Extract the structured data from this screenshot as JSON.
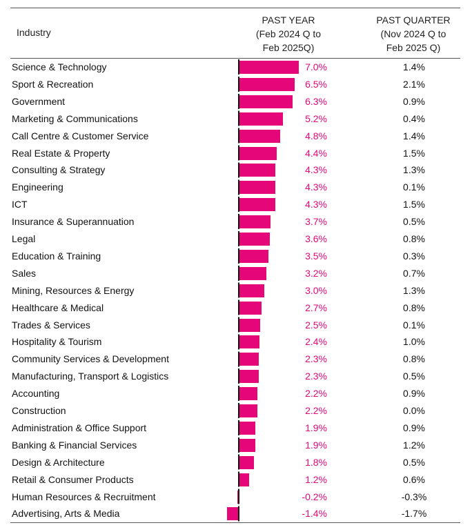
{
  "header": {
    "industry": "Industry",
    "past_year": [
      "PAST YEAR",
      "(Feb 2024 Q to",
      "Feb 2025Q)"
    ],
    "past_quarter": [
      "PAST QUARTER",
      "(Nov 2024 Q to",
      "Feb 2025 Q)"
    ]
  },
  "colors": {
    "bar": "#e5067a",
    "year_text": "#e5067a",
    "quarter_text": "#111111"
  },
  "chart_data": {
    "type": "bar",
    "orientation": "horizontal",
    "title": "",
    "xlabel": "PAST YEAR (Feb 2024 Q to Feb 2025Q)",
    "ylabel": "Industry",
    "xlim": [
      -1.4,
      7.0
    ],
    "grid": false,
    "categories": [
      "Science & Technology",
      "Sport & Recreation",
      "Government",
      "Marketing & Communications",
      "Call Centre & Customer Service",
      "Real Estate & Property",
      "Consulting & Strategy",
      "Engineering",
      "ICT",
      "Insurance & Superannuation",
      "Legal",
      "Education & Training",
      "Sales",
      "Mining, Resources & Energy",
      "Healthcare & Medical",
      "Trades & Services",
      "Hospitality & Tourism",
      "Community Services & Development",
      "Manufacturing, Transport & Logistics",
      "Accounting",
      "Construction",
      "Administration & Office Support",
      "Banking & Financial Services",
      "Design & Architecture",
      "Retail & Consumer Products",
      "Human Resources & Recruitment",
      "Advertising, Arts & Media"
    ],
    "series": [
      {
        "name": "Past Year (%)",
        "values": [
          7.0,
          6.5,
          6.3,
          5.2,
          4.8,
          4.4,
          4.3,
          4.3,
          4.3,
          3.7,
          3.6,
          3.5,
          3.2,
          3.0,
          2.7,
          2.5,
          2.4,
          2.3,
          2.3,
          2.2,
          2.2,
          1.9,
          1.9,
          1.8,
          1.2,
          -0.2,
          -1.4
        ],
        "labels": [
          "7.0%",
          "6.5%",
          "6.3%",
          "5.2%",
          "4.8%",
          "4.4%",
          "4.3%",
          "4.3%",
          "4.3%",
          "3.7%",
          "3.6%",
          "3.5%",
          "3.2%",
          "3.0%",
          "2.7%",
          "2.5%",
          "2.4%",
          "2.3%",
          "2.3%",
          "2.2%",
          "2.2%",
          "1.9%",
          "1.9%",
          "1.8%",
          "1.2%",
          "-0.2%",
          "-1.4%"
        ]
      },
      {
        "name": "Past Quarter (%)",
        "values": [
          1.4,
          2.1,
          0.9,
          0.4,
          1.4,
          1.5,
          1.3,
          0.1,
          1.5,
          0.5,
          0.8,
          0.3,
          0.7,
          1.3,
          0.8,
          0.1,
          1.0,
          0.8,
          0.5,
          0.9,
          0.0,
          0.9,
          1.2,
          0.5,
          0.6,
          -0.3,
          -1.7
        ],
        "labels": [
          "1.4%",
          "2.1%",
          "0.9%",
          "0.4%",
          "1.4%",
          "1.5%",
          "1.3%",
          "0.1%",
          "1.5%",
          "0.5%",
          "0.8%",
          "0.3%",
          "0.7%",
          "1.3%",
          "0.8%",
          "0.1%",
          "1.0%",
          "0.8%",
          "0.5%",
          "0.9%",
          "0.0%",
          "0.9%",
          "1.2%",
          "0.5%",
          "0.6%",
          "-0.3%",
          "-1.7%"
        ]
      }
    ]
  }
}
